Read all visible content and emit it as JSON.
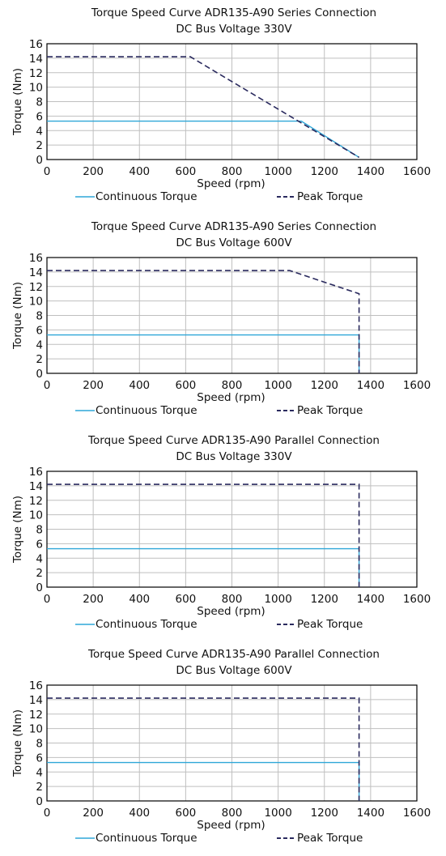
{
  "colors": {
    "continuous": "#2fa7d8",
    "peak": "#2a2a5e",
    "grid": "#bfbfbf",
    "frame": "#000000"
  },
  "chart_data": [
    {
      "type": "line",
      "title": [
        "Torque Speed Curve ADR135-A90 Series Connection",
        "DC Bus Voltage 330V"
      ],
      "xlabel": "Speed (rpm)",
      "ylabel": "Torque (Nm)",
      "xlim": [
        0,
        1600
      ],
      "ylim": [
        0,
        16
      ],
      "xticks": [
        "0",
        "200",
        "400",
        "600",
        "800",
        "1000",
        "1200",
        "1400",
        "1600"
      ],
      "yticks": [
        "0",
        "2",
        "4",
        "6",
        "8",
        "10",
        "12",
        "14",
        "16"
      ],
      "grid": true,
      "legend": "bottom",
      "series": [
        {
          "name": "Continuous Torque",
          "style": "solid",
          "x": [
            0,
            1100,
            1350
          ],
          "y": [
            5.3,
            5.3,
            0.3
          ]
        },
        {
          "name": "Peak Torque",
          "style": "dashed",
          "x": [
            0,
            620,
            1350
          ],
          "y": [
            14.2,
            14.2,
            0.3
          ]
        }
      ]
    },
    {
      "type": "line",
      "title": [
        "Torque Speed Curve ADR135-A90 Series Connection",
        "DC Bus Voltage 600V"
      ],
      "xlabel": "Speed (rpm)",
      "ylabel": "Torque (Nm)",
      "xlim": [
        0,
        1600
      ],
      "ylim": [
        0,
        16
      ],
      "xticks": [
        "0",
        "200",
        "400",
        "600",
        "800",
        "1000",
        "1200",
        "1400",
        "1600"
      ],
      "yticks": [
        "0",
        "2",
        "4",
        "6",
        "8",
        "10",
        "12",
        "14",
        "16"
      ],
      "grid": true,
      "legend": "bottom",
      "series": [
        {
          "name": "Continuous Torque",
          "style": "solid",
          "x": [
            0,
            1350,
            1350
          ],
          "y": [
            5.3,
            5.3,
            0
          ]
        },
        {
          "name": "Peak Torque",
          "style": "dashed",
          "x": [
            0,
            1050,
            1350,
            1350
          ],
          "y": [
            14.2,
            14.2,
            11.0,
            0
          ]
        }
      ]
    },
    {
      "type": "line",
      "title": [
        "Torque Speed Curve ADR135-A90 Parallel Connection",
        "DC Bus Voltage 330V"
      ],
      "xlabel": "Speed (rpm)",
      "ylabel": "Torque (Nm)",
      "xlim": [
        0,
        1600
      ],
      "ylim": [
        0,
        16
      ],
      "xticks": [
        "0",
        "200",
        "400",
        "600",
        "800",
        "1000",
        "1200",
        "1400",
        "1600"
      ],
      "yticks": [
        "0",
        "2",
        "4",
        "6",
        "8",
        "10",
        "12",
        "14",
        "16"
      ],
      "grid": true,
      "legend": "bottom",
      "series": [
        {
          "name": "Continuous Torque",
          "style": "solid",
          "x": [
            0,
            1350,
            1350
          ],
          "y": [
            5.3,
            5.3,
            0
          ]
        },
        {
          "name": "Peak Torque",
          "style": "dashed",
          "x": [
            0,
            1350,
            1350
          ],
          "y": [
            14.2,
            14.2,
            0
          ]
        }
      ]
    },
    {
      "type": "line",
      "title": [
        "Torque Speed Curve ADR135-A90 Parallel Connection",
        "DC Bus Voltage 600V"
      ],
      "xlabel": "Speed (rpm)",
      "ylabel": "Torque (Nm)",
      "xlim": [
        0,
        1600
      ],
      "ylim": [
        0,
        16
      ],
      "xticks": [
        "0",
        "200",
        "400",
        "600",
        "800",
        "1000",
        "1200",
        "1400",
        "1600"
      ],
      "yticks": [
        "0",
        "2",
        "4",
        "6",
        "8",
        "10",
        "12",
        "14",
        "16"
      ],
      "grid": true,
      "legend": "bottom",
      "series": [
        {
          "name": "Continuous Torque",
          "style": "solid",
          "x": [
            0,
            1350,
            1350
          ],
          "y": [
            5.3,
            5.3,
            0
          ]
        },
        {
          "name": "Peak Torque",
          "style": "dashed",
          "x": [
            0,
            1350,
            1350
          ],
          "y": [
            14.2,
            14.2,
            0
          ]
        }
      ]
    }
  ]
}
